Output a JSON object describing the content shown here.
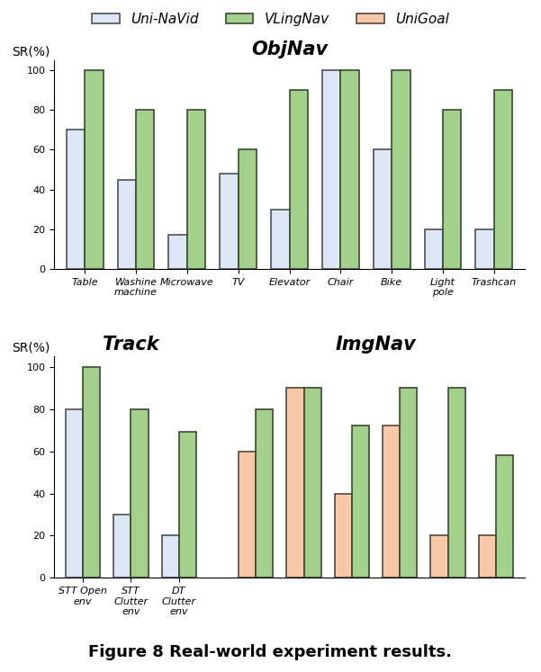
{
  "caption": "Figure 8 Real-world experiment results.",
  "chart_data": [
    {
      "type": "bar",
      "title": "ObjNav",
      "y_label": "SR(%)",
      "legend": "upper center",
      "categories": [
        "Table",
        "Washine machine",
        "Microwave",
        "TV",
        "Elevator",
        "Chair",
        "Bike",
        "Light pole",
        "Trashcan"
      ],
      "series": [
        {
          "name": "Uni-NaVid",
          "color": "#dce6f5",
          "values": [
            70,
            45,
            17,
            48,
            30,
            100,
            60,
            20,
            20
          ]
        },
        {
          "name": "VLingNav",
          "color": "#a3d08a",
          "values": [
            100,
            80,
            80,
            60,
            90,
            100,
            100,
            80,
            90
          ]
        }
      ],
      "ylim": [
        0,
        105
      ],
      "yticks": [
        0,
        20,
        40,
        60,
        80,
        100
      ]
    },
    {
      "type": "bar",
      "title": "Track",
      "y_label": "SR(%)",
      "categories": [
        "STT Open env",
        "STT Clutter env",
        "DT Clutter env"
      ],
      "series": [
        {
          "name": "Uni-NaVid",
          "color": "#dce6f5",
          "values": [
            80,
            30,
            20
          ]
        },
        {
          "name": "VLingNav",
          "color": "#a3d08a",
          "values": [
            100,
            80,
            69
          ]
        }
      ],
      "ylim": [
        0,
        105
      ],
      "yticks": [
        0,
        20,
        40,
        60,
        80,
        100
      ]
    },
    {
      "type": "bar",
      "title": "ImgNav",
      "categories": [
        null,
        null,
        null,
        null,
        null,
        null
      ],
      "series": [
        {
          "name": "UniGoal",
          "color": "#f8c9a9",
          "values": [
            60,
            90,
            40,
            72,
            20,
            20
          ]
        },
        {
          "name": "VLingNav",
          "color": "#a3d08a",
          "values": [
            80,
            90,
            72,
            90,
            90,
            58
          ]
        }
      ],
      "ylim": [
        0,
        105
      ],
      "yticks": [
        0,
        20,
        40,
        60,
        80,
        100
      ]
    }
  ]
}
